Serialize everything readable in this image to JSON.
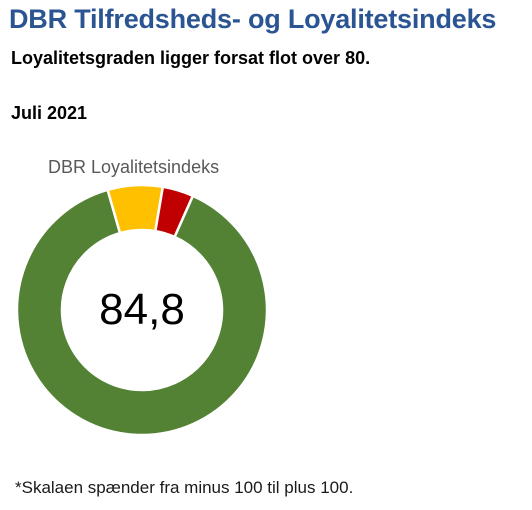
{
  "header": {
    "title": "DBR Tilfredsheds- og Loyalitetsindeks",
    "subtitle": "Loyalitetsgraden ligger forsat flot over 80.",
    "date": "Juli 2021"
  },
  "chart_data": {
    "type": "pie",
    "title": "DBR Loyalitetsindeks",
    "center_label": "84,8",
    "start_angle_deg": 24,
    "categories": [
      "",
      "",
      ""
    ],
    "values": [
      88.9,
      7.1,
      4.0
    ],
    "colors": [
      "#548235",
      "#ffc000",
      "#c00000"
    ],
    "grid": false,
    "legend": "none"
  },
  "footnote": "*Skalaen spænder fra minus 100 til plus 100."
}
